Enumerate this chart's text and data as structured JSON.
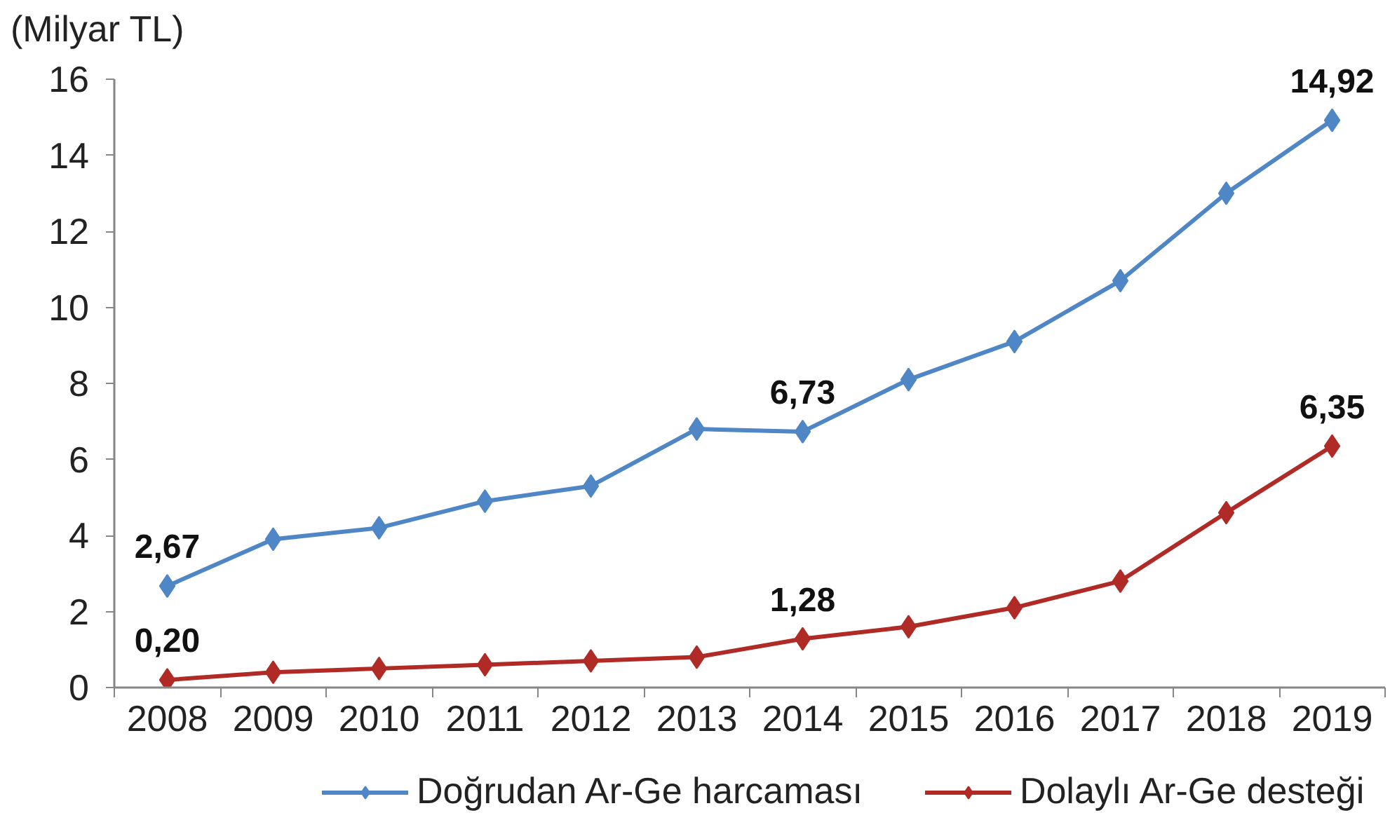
{
  "chart_data": {
    "type": "line",
    "ylabel": "(Milyar TL)",
    "categories": [
      "2008",
      "2009",
      "2010",
      "2011",
      "2012",
      "2013",
      "2014",
      "2015",
      "2016",
      "2017",
      "2018",
      "2019"
    ],
    "ylim": [
      0,
      16
    ],
    "yticks": [
      0,
      2,
      4,
      6,
      8,
      10,
      12,
      14,
      16
    ],
    "grid": false,
    "legend": "bottom",
    "marker": "diamond",
    "line_style": "solid",
    "series": [
      {
        "name": "Doğrudan Ar-Ge harcaması",
        "color": "#4f86c6",
        "values": [
          2.67,
          3.9,
          4.2,
          4.9,
          5.3,
          6.8,
          6.73,
          8.1,
          9.1,
          10.7,
          13.0,
          14.92
        ],
        "value_labels": [
          "2,67",
          null,
          null,
          null,
          null,
          null,
          "6,73",
          null,
          null,
          null,
          null,
          "14,92"
        ]
      },
      {
        "name": "Dolaylı Ar-Ge desteği",
        "color": "#b02a26",
        "values": [
          0.2,
          0.4,
          0.5,
          0.6,
          0.7,
          0.8,
          1.28,
          1.6,
          2.1,
          2.8,
          4.6,
          6.35
        ],
        "value_labels": [
          "0,20",
          null,
          null,
          null,
          null,
          null,
          "1,28",
          null,
          null,
          null,
          null,
          "6,35"
        ]
      }
    ]
  }
}
